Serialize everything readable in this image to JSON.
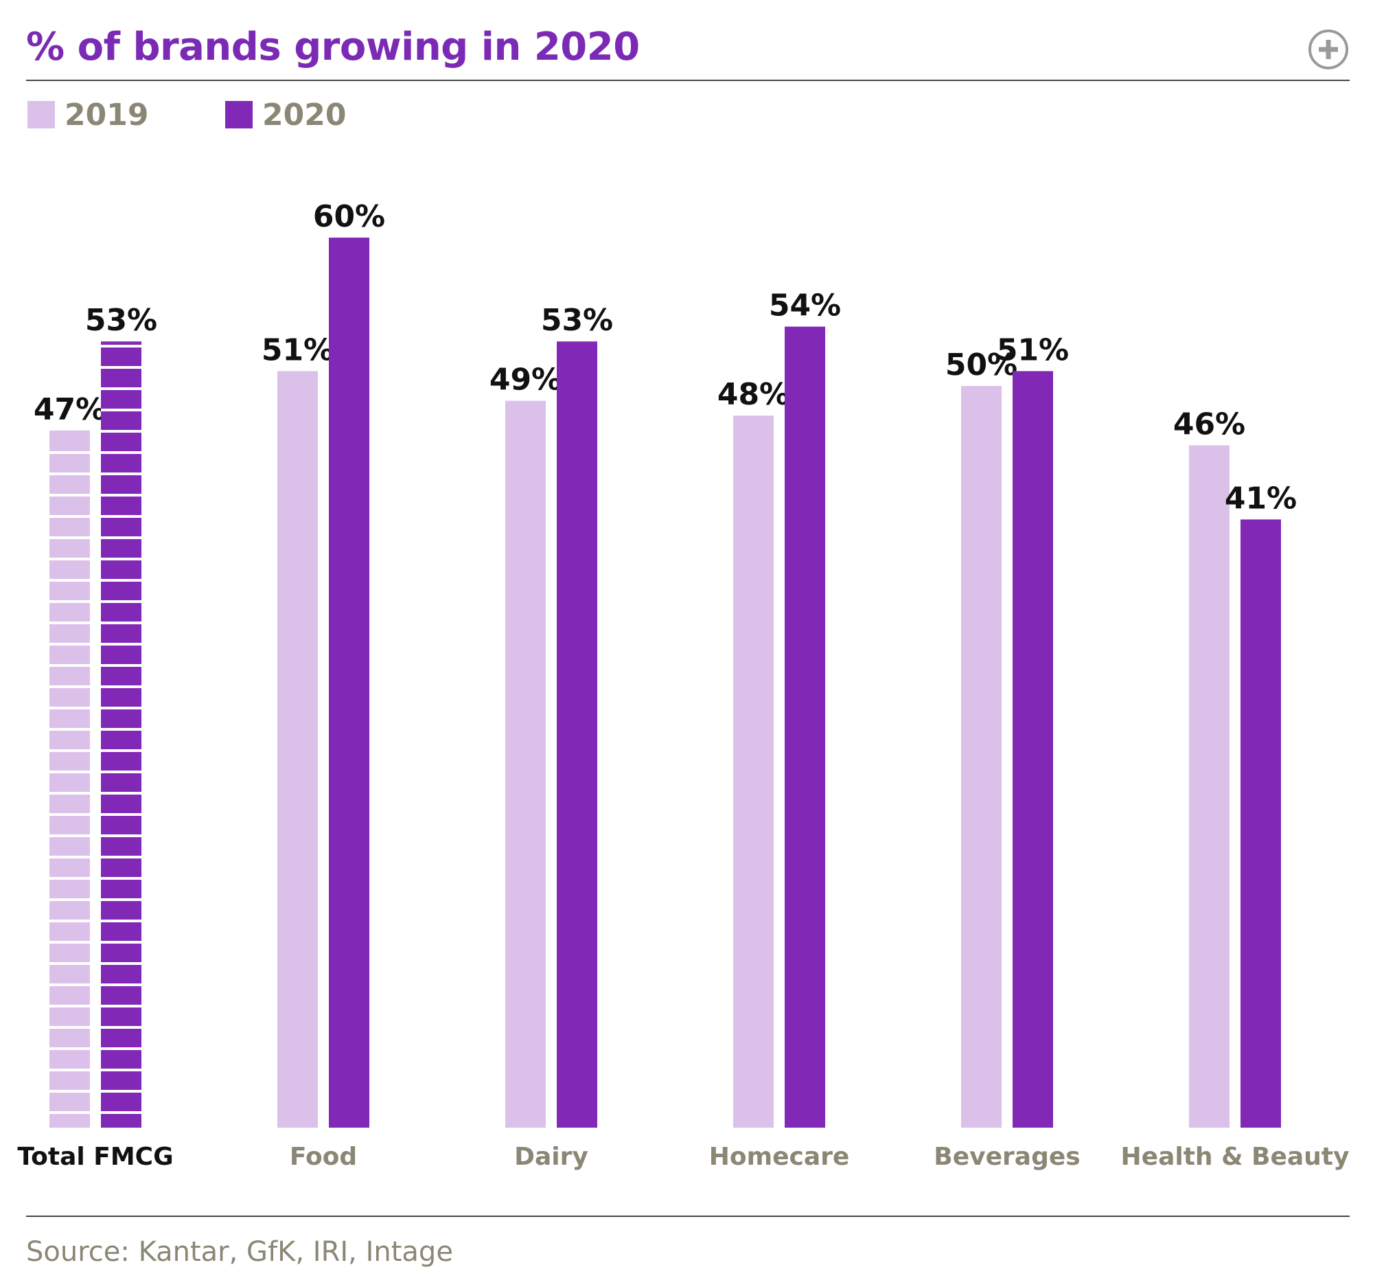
{
  "title": "% of brands growing in 2020",
  "source": "Source: Kantar, GfK, IRI, Intage",
  "icons": {
    "expand": "plus-circle-icon"
  },
  "colors": {
    "s2019": "#dbc1ea",
    "s2020": "#8228b6",
    "title": "#7b2ab5",
    "muted": "#8a8775",
    "dark": "#111111"
  },
  "legend": [
    {
      "label": "2019"
    },
    {
      "label": "2020"
    }
  ],
  "chart_data": {
    "type": "bar",
    "title": "% of brands growing in 2020",
    "categories": [
      "Total FMCG",
      "Food",
      "Dairy",
      "Homecare",
      "Beverages",
      "Health & Beauty"
    ],
    "series": [
      {
        "name": "2019",
        "values": [
          47,
          51,
          49,
          48,
          50,
          46
        ],
        "labels": [
          "47%",
          "51%",
          "49%",
          "48%",
          "50%",
          "46%"
        ]
      },
      {
        "name": "2020",
        "values": [
          53,
          60,
          53,
          54,
          51,
          41
        ],
        "labels": [
          "53%",
          "60%",
          "53%",
          "54%",
          "51%",
          "41%"
        ]
      }
    ],
    "highlighted_category": "Total FMCG",
    "legend_position": "top-left",
    "grid": false,
    "ylim": [
      0,
      60
    ]
  }
}
